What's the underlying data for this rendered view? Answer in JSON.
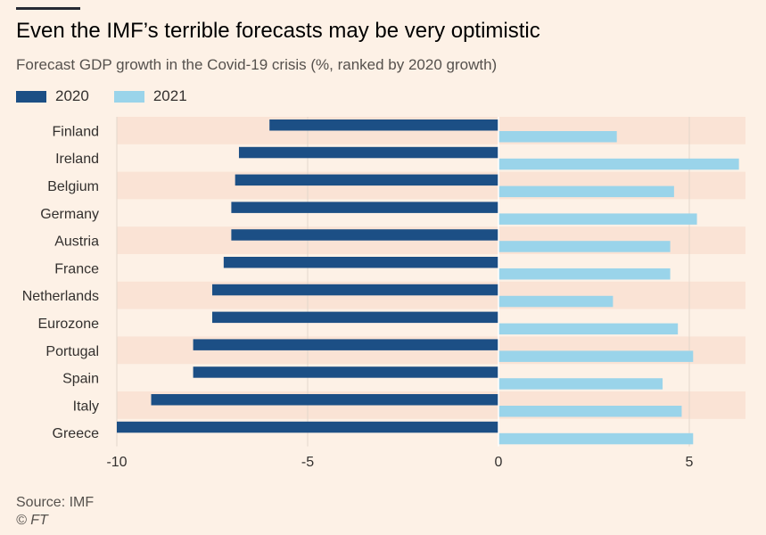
{
  "header": {
    "title": "Even the IMF’s terrible forecasts may be very optimistic",
    "subtitle": "Forecast GDP growth in the Covid-19 crisis (%, ranked by 2020 growth)"
  },
  "footer": {
    "source": "Source: IMF",
    "credit": "© FT"
  },
  "colors": {
    "background": "#fdf1e6",
    "band": "#fae3d5",
    "series_2020": "#1c4f85",
    "series_2021": "#9ad4ea",
    "grid": "#e3d7cc",
    "zero_line": "#ffffff"
  },
  "chart_data": {
    "type": "bar",
    "orientation": "horizontal",
    "categories": [
      "Finland",
      "Ireland",
      "Belgium",
      "Germany",
      "Austria",
      "France",
      "Netherlands",
      "Eurozone",
      "Portugal",
      "Spain",
      "Italy",
      "Greece"
    ],
    "series": [
      {
        "name": "2020",
        "values": [
          -6.0,
          -6.8,
          -6.9,
          -7.0,
          -7.0,
          -7.2,
          -7.5,
          -7.5,
          -8.0,
          -8.0,
          -9.1,
          -10.0
        ]
      },
      {
        "name": "2021",
        "values": [
          3.1,
          6.3,
          4.6,
          5.2,
          4.5,
          4.5,
          3.0,
          4.7,
          5.1,
          4.3,
          4.8,
          5.1
        ]
      }
    ],
    "xlim": [
      -10,
      6.4
    ],
    "xticks": [
      -10,
      -5,
      0,
      5
    ],
    "xtick_labels": [
      "-10",
      "-5",
      "0",
      "5"
    ],
    "grid": true,
    "legend_position": "top-left"
  }
}
